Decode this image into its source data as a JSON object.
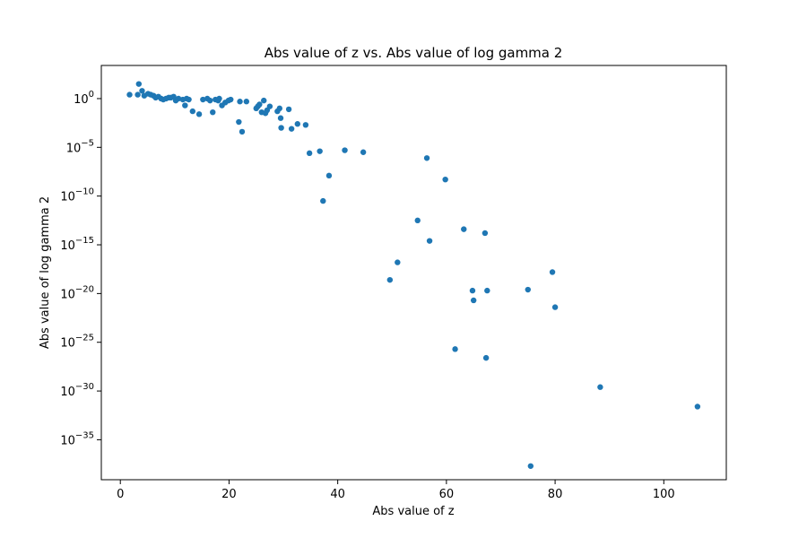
{
  "chart_data": {
    "type": "scatter",
    "title": "Abs value of z vs. Abs value of log gamma 2",
    "xlabel": "Abs value of z",
    "ylabel": "Abs value of log gamma 2",
    "yscale": "log",
    "xlim": [
      -3.5,
      111.5
    ],
    "ylim_log10": [
      -39.1,
      3.4
    ],
    "xticks": [
      0,
      20,
      40,
      60,
      80,
      100
    ],
    "xtick_labels": [
      "0",
      "20",
      "40",
      "60",
      "80",
      "100"
    ],
    "yticks_log10": [
      0,
      -5,
      -10,
      -15,
      -20,
      -25,
      -30,
      -35
    ],
    "ytick_labels": [
      {
        "base": "10",
        "exp": "0"
      },
      {
        "base": "10",
        "exp": "−5"
      },
      {
        "base": "10",
        "exp": "−10"
      },
      {
        "base": "10",
        "exp": "−15"
      },
      {
        "base": "10",
        "exp": "−20"
      },
      {
        "base": "10",
        "exp": "−25"
      },
      {
        "base": "10",
        "exp": "−30"
      },
      {
        "base": "10",
        "exp": "−35"
      }
    ],
    "grid": false,
    "color": "#1f77b4",
    "series": [
      {
        "x_log10y": [
          [
            1.7,
            0.4
          ],
          [
            3.2,
            0.4
          ],
          [
            3.4,
            1.5
          ],
          [
            4.0,
            0.8
          ],
          [
            4.4,
            0.3
          ],
          [
            5.1,
            0.5
          ],
          [
            5.6,
            0.4
          ],
          [
            6.1,
            0.3
          ],
          [
            6.5,
            0.1
          ],
          [
            7.0,
            0.2
          ],
          [
            7.5,
            0.0
          ],
          [
            7.9,
            -0.1
          ],
          [
            8.4,
            0.0
          ],
          [
            8.9,
            0.1
          ],
          [
            9.3,
            0.1
          ],
          [
            9.8,
            0.2
          ],
          [
            10.2,
            -0.2
          ],
          [
            10.7,
            0.0
          ],
          [
            11.5,
            -0.1
          ],
          [
            11.9,
            -0.7
          ],
          [
            12.2,
            0.0
          ],
          [
            12.6,
            -0.1
          ],
          [
            13.3,
            -1.3
          ],
          [
            14.5,
            -1.6
          ],
          [
            15.2,
            -0.1
          ],
          [
            16.0,
            0.0
          ],
          [
            16.5,
            -0.2
          ],
          [
            17.0,
            -1.4
          ],
          [
            17.5,
            -0.1
          ],
          [
            18.0,
            -0.2
          ],
          [
            18.2,
            0.0
          ],
          [
            18.7,
            -0.7
          ],
          [
            19.3,
            -0.4
          ],
          [
            19.9,
            -0.2
          ],
          [
            20.3,
            -0.1
          ],
          [
            21.8,
            -2.4
          ],
          [
            22.0,
            -0.3
          ],
          [
            22.4,
            -3.4
          ],
          [
            23.2,
            -0.3
          ],
          [
            25.0,
            -1.0
          ],
          [
            25.3,
            -0.8
          ],
          [
            25.6,
            -0.6
          ],
          [
            26.0,
            -1.4
          ],
          [
            26.4,
            -0.2
          ],
          [
            26.7,
            -1.5
          ],
          [
            27.0,
            -1.2
          ],
          [
            27.5,
            -0.8
          ],
          [
            28.9,
            -1.3
          ],
          [
            29.3,
            -1.0
          ],
          [
            29.5,
            -2.0
          ],
          [
            29.6,
            -3.0
          ],
          [
            31.0,
            -1.1
          ],
          [
            31.5,
            -3.1
          ],
          [
            32.6,
            -2.6
          ],
          [
            34.1,
            -2.7
          ],
          [
            34.8,
            -5.6
          ],
          [
            36.7,
            -5.4
          ],
          [
            37.3,
            -10.5
          ],
          [
            38.4,
            -7.9
          ],
          [
            41.3,
            -5.3
          ],
          [
            44.7,
            -5.5
          ],
          [
            49.6,
            -18.6
          ],
          [
            51.0,
            -16.8
          ],
          [
            54.7,
            -12.5
          ],
          [
            56.4,
            -6.1
          ],
          [
            56.9,
            -14.6
          ],
          [
            59.8,
            -8.3
          ],
          [
            61.6,
            -25.7
          ],
          [
            63.2,
            -13.4
          ],
          [
            64.8,
            -19.7
          ],
          [
            65.0,
            -20.7
          ],
          [
            67.1,
            -13.8
          ],
          [
            67.3,
            -26.6
          ],
          [
            67.5,
            -19.7
          ],
          [
            75.0,
            -19.6
          ],
          [
            75.5,
            -37.7
          ],
          [
            79.5,
            -17.8
          ],
          [
            80.0,
            -21.4
          ],
          [
            88.3,
            -29.6
          ],
          [
            106.2,
            -31.6
          ]
        ]
      }
    ]
  }
}
